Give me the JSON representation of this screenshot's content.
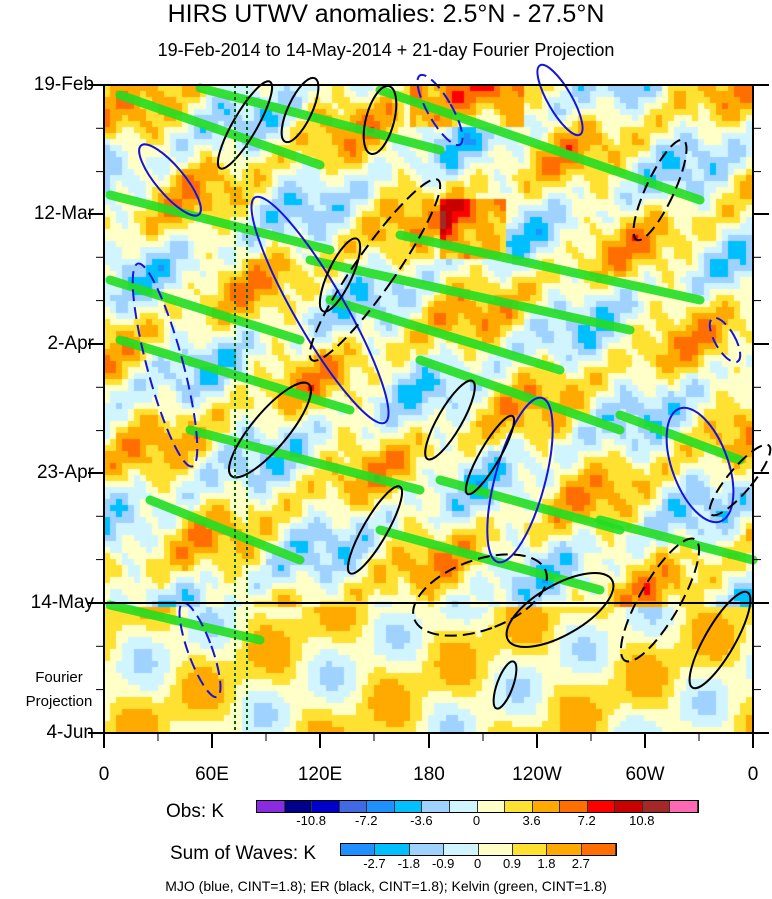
{
  "title": "HIRS UTWV anomalies: 2.5°N - 27.5°N",
  "subtitle": "19-Feb-2014 to 14-May-2014 + 21-day Fourier Projection",
  "chart_data": {
    "type": "heatmap",
    "title": "HIRS UTWV anomalies: 2.5°N - 27.5°N",
    "x_ticks": [
      "0",
      "60E",
      "120E",
      "180",
      "120W",
      "60W",
      "0"
    ],
    "y_ticks": [
      "19-Feb",
      "12-Mar",
      "2-Apr",
      "23-Apr",
      "14-May",
      "4-Jun"
    ],
    "projection_label": "Fourier Projection",
    "xlim": [
      0,
      360
    ],
    "obs_colorbar": {
      "label": "Obs: K",
      "ticks": [
        "-10.8",
        "-7.2",
        "-3.6",
        "0",
        "3.6",
        "7.2",
        "10.8"
      ],
      "colors": [
        "#8a2be2",
        "#00008b",
        "#0000cd",
        "#4169e1",
        "#1e90ff",
        "#00bfff",
        "#a0d2ff",
        "#d1f5ff",
        "#ffffc8",
        "#ffe132",
        "#ffaa00",
        "#ff6e00",
        "#ff0000",
        "#c80000",
        "#a52828",
        "#ff69b4"
      ]
    },
    "waves_colorbar": {
      "label": "Sum of Waves: K",
      "ticks": [
        "-2.7",
        "-1.8",
        "-0.9",
        "0",
        "0.9",
        "1.8",
        "2.7"
      ],
      "colors": [
        "#1e90ff",
        "#00bfff",
        "#a0d2ff",
        "#d1f5ff",
        "#ffffc8",
        "#ffe132",
        "#ffaa00",
        "#ff6e00"
      ]
    },
    "contours": "MJO (blue, CINT=1.8); ER (black, CINT=1.8); Kelvin (green, CINT=1.8)"
  }
}
